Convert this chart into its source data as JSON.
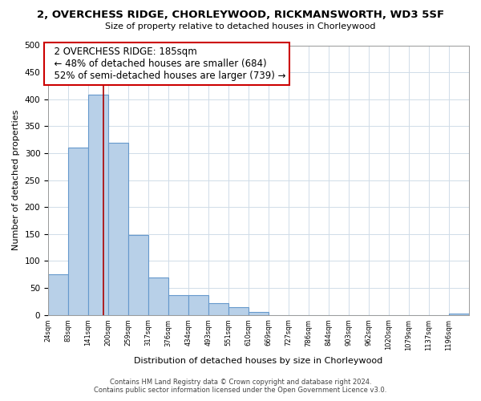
{
  "title": "2, OVERCHESS RIDGE, CHORLEYWOOD, RICKMANSWORTH, WD3 5SF",
  "subtitle": "Size of property relative to detached houses in Chorleywood",
  "xlabel": "Distribution of detached houses by size in Chorleywood",
  "ylabel": "Number of detached properties",
  "bar_color": "#b8d0e8",
  "bar_edge_color": "#6699cc",
  "bin_labels": [
    "24sqm",
    "83sqm",
    "141sqm",
    "200sqm",
    "259sqm",
    "317sqm",
    "376sqm",
    "434sqm",
    "493sqm",
    "551sqm",
    "610sqm",
    "669sqm",
    "727sqm",
    "786sqm",
    "844sqm",
    "903sqm",
    "962sqm",
    "1020sqm",
    "1079sqm",
    "1137sqm",
    "1196sqm"
  ],
  "bar_heights": [
    75,
    311,
    408,
    320,
    148,
    70,
    37,
    37,
    22,
    14,
    6,
    0,
    0,
    0,
    0,
    0,
    0,
    0,
    0,
    0,
    3
  ],
  "ylim": [
    0,
    500
  ],
  "yticks": [
    0,
    50,
    100,
    150,
    200,
    250,
    300,
    350,
    400,
    450,
    500
  ],
  "property_line_x": 185,
  "bin_edges_sqm": [
    24,
    83,
    141,
    200,
    259,
    317,
    376,
    434,
    493,
    551,
    610,
    669,
    727,
    786,
    844,
    903,
    962,
    1020,
    1079,
    1137,
    1196,
    1255
  ],
  "annotation_title": "2 OVERCHESS RIDGE: 185sqm",
  "annotation_line1": "← 48% of detached houses are smaller (684)",
  "annotation_line2": "52% of semi-detached houses are larger (739) →",
  "red_line_color": "#aa0000",
  "footer_line1": "Contains HM Land Registry data © Crown copyright and database right 2024.",
  "footer_line2": "Contains public sector information licensed under the Open Government Licence v3.0.",
  "background_color": "#ffffff",
  "grid_color": "#d0dce8"
}
